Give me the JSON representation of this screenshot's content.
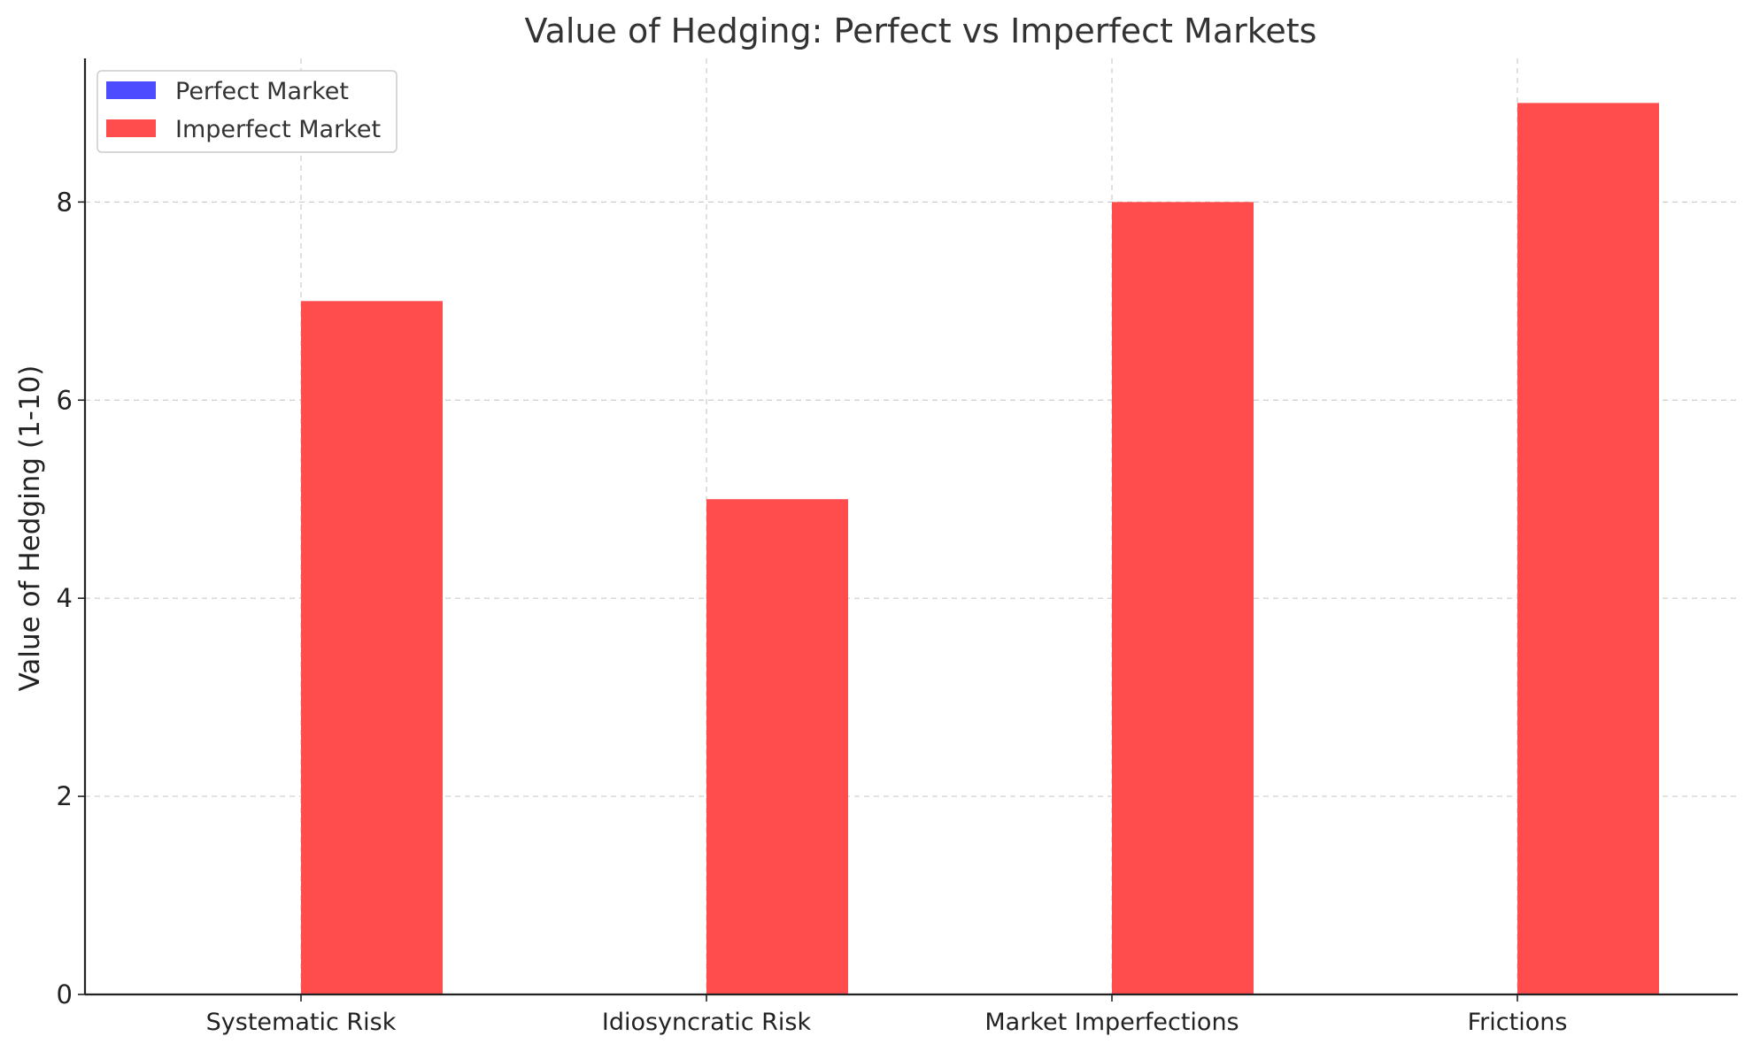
{
  "chart_data": {
    "type": "bar",
    "title": "Value of Hedging: Perfect vs Imperfect Markets",
    "xlabel": "",
    "ylabel": "Value of Hedging (1-10)",
    "categories": [
      "Systematic Risk",
      "Idiosyncratic Risk",
      "Market Imperfections",
      "Frictions"
    ],
    "series": [
      {
        "name": "Perfect Market",
        "values": [
          0,
          0,
          0,
          0
        ],
        "color": "#4d4dff"
      },
      {
        "name": "Imperfect Market",
        "values": [
          7,
          5,
          8,
          9
        ],
        "color": "#ff4d4d"
      }
    ],
    "ylim": [
      0,
      9.45
    ],
    "yticks": [
      "0",
      "2",
      "4",
      "6",
      "8"
    ],
    "grid": true,
    "legend": "top-left"
  }
}
